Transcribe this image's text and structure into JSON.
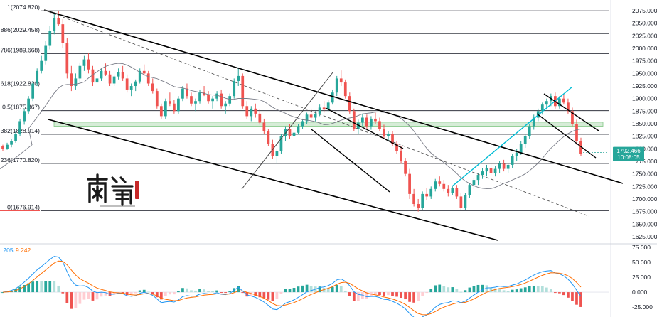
{
  "chart_data": {
    "type": "candlestick",
    "price_axis": {
      "ticks": [
        "2075.000",
        "2050.000",
        "2025.000",
        "2000.000",
        "1975.000",
        "1950.000",
        "1925.000",
        "1900.000",
        "1875.000",
        "1850.000",
        "1825.000",
        "1800.000",
        "1775.000",
        "1750.000",
        "1725.000",
        "1700.000",
        "1675.000",
        "1650.000",
        "1625.000"
      ],
      "range": [
        1615,
        2085
      ]
    },
    "macd_axis": {
      "ticks": [
        "75.000",
        "50.000",
        "25.000",
        "0.000",
        "-25.000"
      ],
      "range": [
        -32,
        75
      ]
    },
    "fib_levels": [
      {
        "ratio": 1,
        "price": 2074.82,
        "label": "1(2074.820)"
      },
      {
        "ratio": 0.886,
        "price": 2029.458,
        "label": "0.886(2029.458)"
      },
      {
        "ratio": 0.786,
        "price": 1989.668,
        "label": "0.786(1989.668)"
      },
      {
        "ratio": 0.618,
        "price": 1922.82,
        "label": "0.618(1922.820)"
      },
      {
        "ratio": 0.5,
        "price": 1875.867,
        "label": "0.5(1875.867)"
      },
      {
        "ratio": 0.382,
        "price": 1828.914,
        "label": "0.382(1828.914)"
      },
      {
        "ratio": 0.236,
        "price": 1770.82,
        "label": "0.236(1770.820)"
      },
      {
        "ratio": 0,
        "price": 1676.914,
        "label": "0(1676.914)"
      }
    ],
    "current_price": {
      "value": 1792.466,
      "label": "1792.466",
      "countdown": "10:08:05",
      "color": "#26a69a"
    },
    "support_zone": [
      1845,
      1853
    ],
    "macd_header": {
      "first": ".205",
      "second": "9.242",
      "first_color": "#2196f3",
      "second_color": "#ff6d00"
    },
    "colors": {
      "up": "#26a69a",
      "down": "#ef5350",
      "ma": "#787b86",
      "fib": "#131722",
      "zone": "#c8e6c9",
      "channel_blue": "#00bcd4"
    },
    "candles": [
      [
        1805,
        1808,
        1795,
        1800
      ],
      [
        1800,
        1812,
        1798,
        1808
      ],
      [
        1808,
        1820,
        1803,
        1815
      ],
      [
        1815,
        1835,
        1812,
        1830
      ],
      [
        1830,
        1860,
        1825,
        1855
      ],
      [
        1855,
        1880,
        1848,
        1875
      ],
      [
        1875,
        1905,
        1870,
        1900
      ],
      [
        1900,
        1935,
        1895,
        1930
      ],
      [
        1930,
        1960,
        1925,
        1955
      ],
      [
        1955,
        1985,
        1950,
        1975
      ],
      [
        1975,
        2015,
        1968,
        2005
      ],
      [
        2005,
        2045,
        1998,
        2035
      ],
      [
        2035,
        2068,
        2028,
        2060
      ],
      [
        2060,
        2075,
        2045,
        2048
      ],
      [
        2048,
        2058,
        2000,
        2010
      ],
      [
        2010,
        2020,
        1940,
        1950
      ],
      [
        1950,
        1965,
        1915,
        1925
      ],
      [
        1925,
        1950,
        1918,
        1940
      ],
      [
        1940,
        1972,
        1932,
        1965
      ],
      [
        1965,
        1985,
        1955,
        1978
      ],
      [
        1978,
        1990,
        1950,
        1958
      ],
      [
        1958,
        1965,
        1925,
        1932
      ],
      [
        1932,
        1945,
        1922,
        1940
      ],
      [
        1940,
        1960,
        1935,
        1955
      ],
      [
        1955,
        1970,
        1945,
        1948
      ],
      [
        1948,
        1955,
        1925,
        1930
      ],
      [
        1930,
        1948,
        1925,
        1944
      ],
      [
        1944,
        1960,
        1938,
        1952
      ],
      [
        1952,
        1965,
        1935,
        1940
      ],
      [
        1940,
        1948,
        1912,
        1918
      ],
      [
        1918,
        1930,
        1905,
        1925
      ],
      [
        1925,
        1938,
        1915,
        1934
      ],
      [
        1934,
        1960,
        1930,
        1955
      ],
      [
        1955,
        1968,
        1945,
        1950
      ],
      [
        1950,
        1955,
        1925,
        1930
      ],
      [
        1930,
        1940,
        1910,
        1915
      ],
      [
        1915,
        1920,
        1880,
        1885
      ],
      [
        1885,
        1890,
        1860,
        1865
      ],
      [
        1865,
        1900,
        1860,
        1895
      ],
      [
        1895,
        1912,
        1885,
        1890
      ],
      [
        1890,
        1898,
        1870,
        1875
      ],
      [
        1875,
        1905,
        1870,
        1900
      ],
      [
        1900,
        1925,
        1895,
        1920
      ],
      [
        1920,
        1930,
        1900,
        1905
      ],
      [
        1905,
        1912,
        1885,
        1890
      ],
      [
        1890,
        1900,
        1875,
        1895
      ],
      [
        1895,
        1918,
        1890,
        1912
      ],
      [
        1912,
        1925,
        1905,
        1908
      ],
      [
        1908,
        1915,
        1890,
        1895
      ],
      [
        1895,
        1905,
        1880,
        1900
      ],
      [
        1900,
        1915,
        1895,
        1910
      ],
      [
        1910,
        1918,
        1880,
        1885
      ],
      [
        1885,
        1895,
        1870,
        1890
      ],
      [
        1890,
        1910,
        1885,
        1905
      ],
      [
        1905,
        1940,
        1900,
        1935
      ],
      [
        1935,
        1962,
        1925,
        1945
      ],
      [
        1945,
        1950,
        1880,
        1885
      ],
      [
        1885,
        1895,
        1860,
        1865
      ],
      [
        1865,
        1885,
        1855,
        1880
      ],
      [
        1880,
        1890,
        1862,
        1870
      ],
      [
        1870,
        1878,
        1848,
        1852
      ],
      [
        1852,
        1860,
        1830,
        1835
      ],
      [
        1835,
        1840,
        1805,
        1810
      ],
      [
        1810,
        1818,
        1780,
        1785
      ],
      [
        1785,
        1800,
        1770,
        1795
      ],
      [
        1795,
        1830,
        1790,
        1825
      ],
      [
        1825,
        1845,
        1815,
        1840
      ],
      [
        1840,
        1850,
        1820,
        1825
      ],
      [
        1825,
        1838,
        1815,
        1832
      ],
      [
        1832,
        1850,
        1828,
        1845
      ],
      [
        1845,
        1860,
        1840,
        1855
      ],
      [
        1855,
        1872,
        1850,
        1868
      ],
      [
        1868,
        1880,
        1858,
        1862
      ],
      [
        1862,
        1875,
        1855,
        1870
      ],
      [
        1870,
        1888,
        1865,
        1882
      ],
      [
        1882,
        1895,
        1872,
        1878
      ],
      [
        1878,
        1898,
        1875,
        1892
      ],
      [
        1892,
        1918,
        1888,
        1912
      ],
      [
        1912,
        1945,
        1905,
        1940
      ],
      [
        1940,
        1956,
        1925,
        1932
      ],
      [
        1932,
        1938,
        1900,
        1905
      ],
      [
        1905,
        1912,
        1870,
        1875
      ],
      [
        1875,
        1880,
        1835,
        1840
      ],
      [
        1840,
        1858,
        1830,
        1852
      ],
      [
        1852,
        1870,
        1845,
        1862
      ],
      [
        1862,
        1868,
        1840,
        1845
      ],
      [
        1845,
        1865,
        1838,
        1860
      ],
      [
        1860,
        1872,
        1850,
        1855
      ],
      [
        1855,
        1862,
        1835,
        1840
      ],
      [
        1840,
        1848,
        1820,
        1825
      ],
      [
        1825,
        1835,
        1815,
        1830
      ],
      [
        1830,
        1835,
        1805,
        1810
      ],
      [
        1810,
        1815,
        1790,
        1795
      ],
      [
        1795,
        1805,
        1770,
        1775
      ],
      [
        1775,
        1782,
        1745,
        1750
      ],
      [
        1750,
        1760,
        1700,
        1710
      ],
      [
        1710,
        1720,
        1685,
        1690
      ],
      [
        1690,
        1700,
        1675,
        1682
      ],
      [
        1682,
        1715,
        1678,
        1710
      ],
      [
        1710,
        1722,
        1698,
        1705
      ],
      [
        1705,
        1725,
        1700,
        1720
      ],
      [
        1720,
        1740,
        1715,
        1735
      ],
      [
        1735,
        1745,
        1725,
        1730
      ],
      [
        1730,
        1738,
        1715,
        1720
      ],
      [
        1720,
        1728,
        1705,
        1712
      ],
      [
        1712,
        1725,
        1708,
        1722
      ],
      [
        1722,
        1728,
        1700,
        1705
      ],
      [
        1705,
        1712,
        1678,
        1682
      ],
      [
        1682,
        1712,
        1678,
        1708
      ],
      [
        1708,
        1732,
        1702,
        1728
      ],
      [
        1728,
        1742,
        1720,
        1738
      ],
      [
        1738,
        1752,
        1728,
        1748
      ],
      [
        1748,
        1762,
        1740,
        1755
      ],
      [
        1755,
        1768,
        1745,
        1762
      ],
      [
        1762,
        1770,
        1748,
        1752
      ],
      [
        1752,
        1765,
        1745,
        1760
      ],
      [
        1760,
        1775,
        1752,
        1770
      ],
      [
        1770,
        1778,
        1755,
        1760
      ],
      [
        1760,
        1772,
        1752,
        1768
      ],
      [
        1768,
        1790,
        1762,
        1785
      ],
      [
        1785,
        1800,
        1775,
        1792
      ],
      [
        1792,
        1815,
        1788,
        1810
      ],
      [
        1810,
        1830,
        1802,
        1825
      ],
      [
        1825,
        1850,
        1820,
        1845
      ],
      [
        1845,
        1868,
        1838,
        1862
      ],
      [
        1862,
        1880,
        1855,
        1875
      ],
      [
        1875,
        1892,
        1868,
        1888
      ],
      [
        1888,
        1900,
        1878,
        1895
      ],
      [
        1895,
        1910,
        1885,
        1905
      ],
      [
        1905,
        1912,
        1880,
        1885
      ],
      [
        1885,
        1905,
        1880,
        1900
      ],
      [
        1900,
        1910,
        1888,
        1892
      ],
      [
        1892,
        1900,
        1870,
        1875
      ],
      [
        1875,
        1882,
        1845,
        1850
      ],
      [
        1850,
        1858,
        1808,
        1815
      ],
      [
        1815,
        1822,
        1785,
        1790
      ]
    ]
  }
}
